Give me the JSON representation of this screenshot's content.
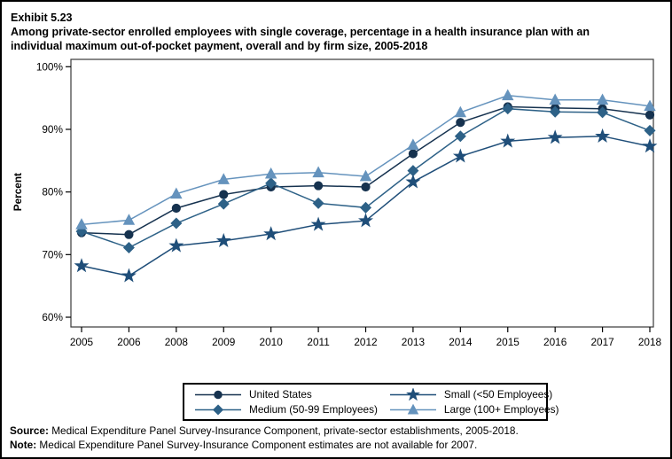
{
  "title": {
    "exhibit": "Exhibit 5.23",
    "text": "Among private-sector enrolled employees with single coverage, percentage in a health insurance plan with an individual maximum out-of-pocket payment, overall and by firm size, 2005-2018"
  },
  "chart_data": {
    "type": "line",
    "title": "",
    "xlabel": "",
    "ylabel": "Percent",
    "ylim": [
      60,
      100
    ],
    "yticks": [
      60,
      70,
      80,
      90,
      100
    ],
    "ytick_suffix": "%",
    "grid": false,
    "legend_position": "bottom-center",
    "categories": [
      "2005",
      "2006",
      "2008",
      "2009",
      "2010",
      "2011",
      "2012",
      "2013",
      "2014",
      "2015",
      "2016",
      "2017",
      "2018"
    ],
    "series": [
      {
        "name": "United States",
        "marker": "circle",
        "color": "#16324f",
        "values": [
          73.5,
          73.2,
          77.4,
          79.6,
          80.8,
          81.0,
          80.8,
          86.1,
          91.1,
          93.6,
          93.4,
          93.3,
          92.3
        ]
      },
      {
        "name": "Medium (50-99 Employees)",
        "marker": "diamond",
        "color": "#2d6187",
        "values": [
          73.7,
          71.1,
          75.0,
          78.1,
          81.4,
          78.2,
          77.5,
          83.4,
          88.9,
          93.3,
          92.8,
          92.7,
          89.8
        ]
      },
      {
        "name": "Small (<50 Employees)",
        "marker": "star",
        "color": "#1f4e79",
        "values": [
          68.2,
          66.6,
          71.4,
          72.2,
          73.3,
          74.8,
          75.4,
          81.6,
          85.7,
          88.1,
          88.7,
          88.9,
          87.3
        ]
      },
      {
        "name": "Large (100+ Employees)",
        "marker": "triangle",
        "color": "#6593bd",
        "values": [
          74.8,
          75.5,
          79.7,
          82.0,
          82.9,
          83.1,
          82.5,
          87.5,
          92.7,
          95.4,
          94.7,
          94.7,
          93.7
        ]
      }
    ],
    "annotations": [
      "Estimates are not available for 2007"
    ]
  },
  "footer": {
    "source_label": "Source:",
    "source_text": " Medical Expenditure Panel Survey-Insurance Component, private-sector establishments, 2005-2018.",
    "note_label": "Note:",
    "note_text": " Medical Expenditure Panel Survey-Insurance Component estimates are not available for 2007."
  }
}
